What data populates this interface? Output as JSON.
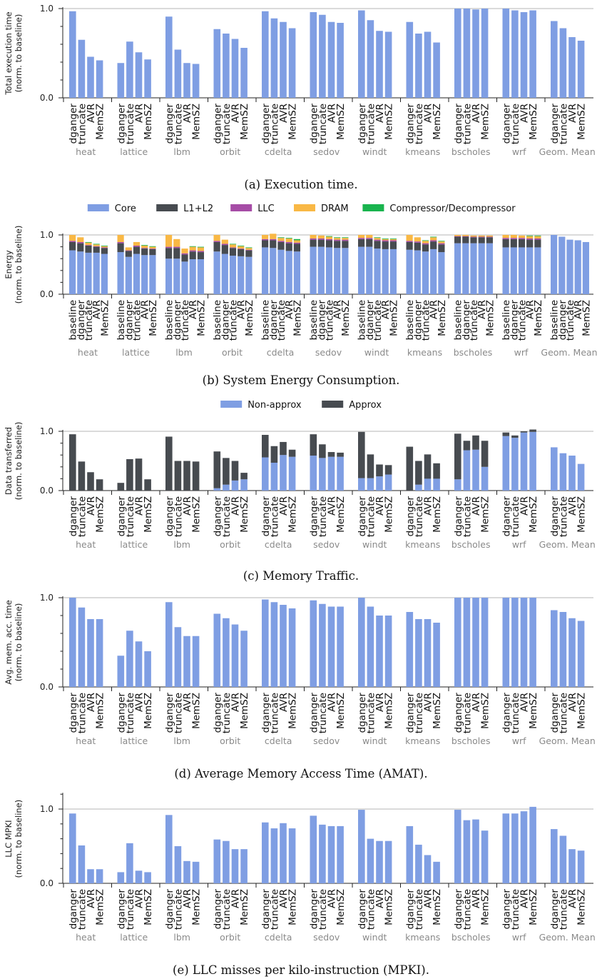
{
  "colors": {
    "core": "#7f9ee3",
    "l1l2": "#474b50",
    "llc": "#a64ca6",
    "dram": "#f9b845",
    "compressor": "#19b44e",
    "non_approx": "#7f9ee3",
    "approx": "#474b50",
    "single": "#7f9ee3"
  },
  "chart_data": [
    {
      "type": "bar",
      "caption": "(a) Execution time.",
      "ylabel": [
        "Total execution time",
        "(norm. to baseline)"
      ],
      "ylim": [
        0,
        1
      ],
      "yticks": [
        "0.0",
        "1.0"
      ],
      "grid": "horizontal",
      "groups": [
        "heat",
        "lattice",
        "lbm",
        "orbit",
        "cdelta",
        "sedov",
        "windt",
        "kmeans",
        "bscholes",
        "wrf",
        "Geom. Mean"
      ],
      "variants": [
        "dganger",
        "truncate",
        "AVR",
        "MemSZ"
      ],
      "values": [
        [
          0.97,
          0.65,
          0.46,
          0.42
        ],
        [
          0.39,
          0.63,
          0.51,
          0.43
        ],
        [
          0.91,
          0.54,
          0.39,
          0.38
        ],
        [
          0.77,
          0.72,
          0.66,
          0.56
        ],
        [
          0.97,
          0.89,
          0.85,
          0.78
        ],
        [
          0.96,
          0.93,
          0.85,
          0.84
        ],
        [
          0.98,
          0.87,
          0.75,
          0.74
        ],
        [
          0.85,
          0.72,
          0.74,
          0.62
        ],
        [
          1.0,
          1.0,
          0.99,
          1.0
        ],
        [
          1.0,
          0.98,
          0.96,
          0.98
        ],
        [
          0.86,
          0.78,
          0.68,
          0.64
        ]
      ]
    },
    {
      "type": "stacked-bar",
      "caption": "(b) System Energy Consumption.",
      "ylabel": [
        "Energy",
        "(norm. to baseline)"
      ],
      "ylim": [
        0,
        1
      ],
      "yticks": [
        "0.0",
        "1.0"
      ],
      "grid": "horizontal",
      "legend": [
        "Core",
        "L1+L2",
        "LLC",
        "DRAM",
        "Compressor/Decompressor"
      ],
      "legend_position": "top",
      "groups": [
        "heat",
        "lattice",
        "lbm",
        "orbit",
        "cdelta",
        "sedov",
        "windt",
        "kmeans",
        "bscholes",
        "wrf",
        "Geom. Mean"
      ],
      "variants": [
        "baseline",
        "dganger",
        "truncate",
        "AVR",
        "MemSZ"
      ],
      "values": [
        [
          [
            0.74,
            0.14,
            0.02,
            0.1,
            0
          ],
          [
            0.72,
            0.14,
            0.02,
            0.08,
            0
          ],
          [
            0.7,
            0.12,
            0.01,
            0.04,
            0.01
          ],
          [
            0.7,
            0.1,
            0.01,
            0.03,
            0.01
          ],
          [
            0.68,
            0.1,
            0.01,
            0.02,
            0.01
          ]
        ],
        [
          [
            0.71,
            0.15,
            0.02,
            0.12,
            0
          ],
          [
            0.63,
            0.1,
            0.01,
            0.05,
            0
          ],
          [
            0.68,
            0.12,
            0.02,
            0.06,
            0
          ],
          [
            0.66,
            0.11,
            0.01,
            0.04,
            0.01
          ],
          [
            0.66,
            0.1,
            0.01,
            0.03,
            0.01
          ]
        ],
        [
          [
            0.6,
            0.18,
            0.02,
            0.2,
            0
          ],
          [
            0.6,
            0.18,
            0.02,
            0.13,
            0
          ],
          [
            0.55,
            0.12,
            0.02,
            0.08,
            0
          ],
          [
            0.59,
            0.13,
            0.02,
            0.06,
            0.01
          ],
          [
            0.59,
            0.12,
            0.02,
            0.06,
            0.01
          ]
        ],
        [
          [
            0.72,
            0.16,
            0.02,
            0.1,
            0
          ],
          [
            0.68,
            0.15,
            0.02,
            0.07,
            0
          ],
          [
            0.65,
            0.13,
            0.01,
            0.05,
            0.01
          ],
          [
            0.64,
            0.12,
            0.01,
            0.04,
            0.01
          ],
          [
            0.63,
            0.11,
            0.01,
            0.03,
            0.01
          ]
        ],
        [
          [
            0.79,
            0.12,
            0.02,
            0.07,
            0
          ],
          [
            0.78,
            0.13,
            0.02,
            0.09,
            0
          ],
          [
            0.75,
            0.13,
            0.02,
            0.05,
            0.01
          ],
          [
            0.73,
            0.13,
            0.02,
            0.06,
            0.01
          ],
          [
            0.72,
            0.13,
            0.02,
            0.04,
            0.02
          ]
        ],
        [
          [
            0.8,
            0.12,
            0.02,
            0.06,
            0
          ],
          [
            0.8,
            0.12,
            0.02,
            0.05,
            0
          ],
          [
            0.79,
            0.12,
            0.02,
            0.04,
            0.01
          ],
          [
            0.78,
            0.12,
            0.02,
            0.03,
            0.01
          ],
          [
            0.78,
            0.12,
            0.02,
            0.03,
            0.01
          ]
        ],
        [
          [
            0.8,
            0.13,
            0.02,
            0.05,
            0
          ],
          [
            0.8,
            0.13,
            0.02,
            0.05,
            0
          ],
          [
            0.77,
            0.13,
            0.02,
            0.03,
            0.01
          ],
          [
            0.76,
            0.13,
            0.02,
            0.02,
            0.01
          ],
          [
            0.76,
            0.13,
            0.02,
            0.02,
            0.01
          ]
        ],
        [
          [
            0.75,
            0.13,
            0.02,
            0.1,
            0
          ],
          [
            0.74,
            0.13,
            0.02,
            0.07,
            0
          ],
          [
            0.72,
            0.12,
            0.02,
            0.04,
            0.01
          ],
          [
            0.76,
            0.13,
            0.02,
            0.05,
            0.01
          ],
          [
            0.71,
            0.13,
            0.02,
            0.03,
            0.01
          ]
        ],
        [
          [
            0.86,
            0.11,
            0.01,
            0.02,
            0
          ],
          [
            0.86,
            0.11,
            0.01,
            0.02,
            0
          ],
          [
            0.86,
            0.1,
            0.01,
            0.02,
            0
          ],
          [
            0.86,
            0.1,
            0.01,
            0.02,
            0
          ],
          [
            0.86,
            0.1,
            0.01,
            0.02,
            0
          ]
        ],
        [
          [
            0.79,
            0.14,
            0.02,
            0.05,
            0
          ],
          [
            0.79,
            0.14,
            0.02,
            0.05,
            0
          ],
          [
            0.79,
            0.14,
            0.02,
            0.04,
            0
          ],
          [
            0.79,
            0.13,
            0.02,
            0.04,
            0.01
          ],
          [
            0.79,
            0.13,
            0.02,
            0.04,
            0.01
          ]
        ],
        [
          [
            1.0,
            0,
            0,
            0,
            0
          ],
          [
            0.97,
            0,
            0,
            0,
            0
          ],
          [
            0.92,
            0,
            0,
            0,
            0
          ],
          [
            0.91,
            0,
            0,
            0,
            0
          ],
          [
            0.88,
            0,
            0,
            0,
            0
          ]
        ]
      ]
    },
    {
      "type": "stacked-bar",
      "caption": "(c) Memory Traffic.",
      "ylabel": [
        "Data transferred",
        "(norm. to baseline)"
      ],
      "ylim": [
        0,
        1
      ],
      "yticks": [
        "0.0",
        "1.0"
      ],
      "grid": "horizontal",
      "legend": [
        "Non-approx",
        "Approx"
      ],
      "legend_position": "top",
      "groups": [
        "heat",
        "lattice",
        "lbm",
        "orbit",
        "cdelta",
        "sedov",
        "windt",
        "kmeans",
        "bscholes",
        "wrf",
        "Geom. Mean"
      ],
      "variants": [
        "dganger",
        "truncate",
        "AVR",
        "MemSZ"
      ],
      "values": [
        [
          [
            0,
            0.95
          ],
          [
            0,
            0.49
          ],
          [
            0,
            0.31
          ],
          [
            0,
            0.19
          ]
        ],
        [
          [
            0,
            0.13
          ],
          [
            0,
            0.53
          ],
          [
            0,
            0.54
          ],
          [
            0,
            0.19
          ]
        ],
        [
          [
            0,
            0.91
          ],
          [
            0,
            0.5
          ],
          [
            0,
            0.5
          ],
          [
            0,
            0.49
          ]
        ],
        [
          [
            0.04,
            0.62
          ],
          [
            0.1,
            0.45
          ],
          [
            0.17,
            0.33
          ],
          [
            0.19,
            0.11
          ]
        ],
        [
          [
            0.56,
            0.38
          ],
          [
            0.47,
            0.28
          ],
          [
            0.6,
            0.22
          ],
          [
            0.57,
            0.12
          ]
        ],
        [
          [
            0.59,
            0.36
          ],
          [
            0.55,
            0.23
          ],
          [
            0.57,
            0.08
          ],
          [
            0.57,
            0.07
          ]
        ],
        [
          [
            0.21,
            0.78
          ],
          [
            0.21,
            0.4
          ],
          [
            0.24,
            0.2
          ],
          [
            0.27,
            0.16
          ]
        ],
        [
          [
            0,
            0.74
          ],
          [
            0.1,
            0.4
          ],
          [
            0.2,
            0.41
          ],
          [
            0.2,
            0.26
          ]
        ],
        [
          [
            0.19,
            0.77
          ],
          [
            0.68,
            0.16
          ],
          [
            0.69,
            0.24
          ],
          [
            0.4,
            0.44
          ]
        ],
        [
          [
            0.92,
            0.06
          ],
          [
            0.89,
            0.04
          ],
          [
            0.98,
            0.02
          ],
          [
            0.99,
            0.04
          ]
        ],
        [
          [
            0.73,
            0
          ],
          [
            0.63,
            0
          ],
          [
            0.59,
            0
          ],
          [
            0.45,
            0
          ]
        ]
      ]
    },
    {
      "type": "bar",
      "caption": "(d) Average Memory Access Time (AMAT).",
      "ylabel": [
        "Avg. mem. acc. time",
        "(norm. to baseline)"
      ],
      "ylim": [
        0,
        1
      ],
      "yticks": [
        "0.0",
        "1.0"
      ],
      "grid": "horizontal",
      "groups": [
        "heat",
        "lattice",
        "lbm",
        "orbit",
        "cdelta",
        "sedov",
        "windt",
        "kmeans",
        "bscholes",
        "wrf",
        "Geom. Mean"
      ],
      "variants": [
        "dganger",
        "truncate",
        "AVR",
        "MemSZ"
      ],
      "values": [
        [
          1.0,
          0.89,
          0.76,
          0.76
        ],
        [
          0.35,
          0.63,
          0.51,
          0.4
        ],
        [
          0.95,
          0.67,
          0.57,
          0.57
        ],
        [
          0.82,
          0.77,
          0.7,
          0.63
        ],
        [
          0.98,
          0.95,
          0.92,
          0.88
        ],
        [
          0.97,
          0.93,
          0.9,
          0.9
        ],
        [
          1.0,
          0.9,
          0.8,
          0.8
        ],
        [
          0.84,
          0.76,
          0.76,
          0.72
        ],
        [
          1.0,
          1.0,
          1.0,
          1.0
        ],
        [
          1.0,
          1.0,
          1.0,
          1.0
        ],
        [
          0.86,
          0.84,
          0.77,
          0.74
        ]
      ]
    },
    {
      "type": "bar",
      "caption": "(e) LLC misses per kilo-instruction (MPKI).",
      "ylabel": [
        "LLC MPKI",
        "(norm. to baseline)"
      ],
      "ylim": [
        0,
        1.2
      ],
      "yticks": [
        "0.0",
        "1.0"
      ],
      "grid": "horizontal",
      "groups": [
        "heat",
        "lattice",
        "lbm",
        "orbit",
        "cdelta",
        "sedov",
        "windt",
        "kmeans",
        "bscholes",
        "wrf",
        "Geom. Mean"
      ],
      "variants": [
        "dganger",
        "truncate",
        "AVR",
        "MemSZ"
      ],
      "values": [
        [
          0.94,
          0.51,
          0.19,
          0.19
        ],
        [
          0.15,
          0.54,
          0.17,
          0.15
        ],
        [
          0.92,
          0.5,
          0.3,
          0.29
        ],
        [
          0.59,
          0.57,
          0.46,
          0.46
        ],
        [
          0.82,
          0.74,
          0.81,
          0.74
        ],
        [
          0.91,
          0.79,
          0.77,
          0.77
        ],
        [
          0.99,
          0.6,
          0.57,
          0.57
        ],
        [
          0.77,
          0.52,
          0.38,
          0.29
        ],
        [
          0.99,
          0.85,
          0.86,
          0.71
        ],
        [
          0.94,
          0.94,
          0.97,
          1.03
        ],
        [
          0.73,
          0.64,
          0.46,
          0.44
        ]
      ]
    }
  ]
}
